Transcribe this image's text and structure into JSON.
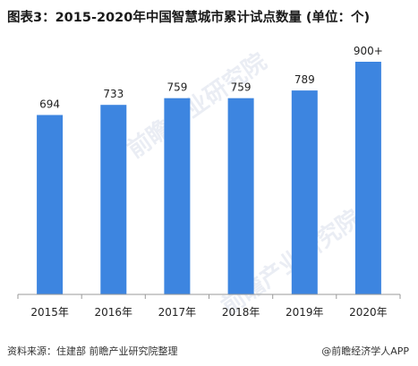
{
  "title": "图表3：2015-2020年中国智慧城市累计试点数量 (单位：个)",
  "footer": {
    "source": "资料来源：住建部 前瞻产业研究院整理",
    "brand": "@前瞻经济学人APP"
  },
  "watermark": "前瞻产业研究院",
  "colors": {
    "bar": "#3d85e0",
    "axis": "#9a9a9a"
  },
  "chart_data": {
    "type": "bar",
    "categories": [
      "2015年",
      "2016年",
      "2017年",
      "2018年",
      "2019年",
      "2020年"
    ],
    "values": [
      694,
      733,
      759,
      759,
      789,
      900
    ],
    "labels": [
      "694",
      "733",
      "759",
      "759",
      "789",
      "900+"
    ],
    "title": "图表3：2015-2020年中国智慧城市累计试点数量 (单位：个)",
    "xlabel": "",
    "ylabel": "",
    "ylim": [
      0,
      1035
    ],
    "grid": false,
    "legend": "none"
  }
}
